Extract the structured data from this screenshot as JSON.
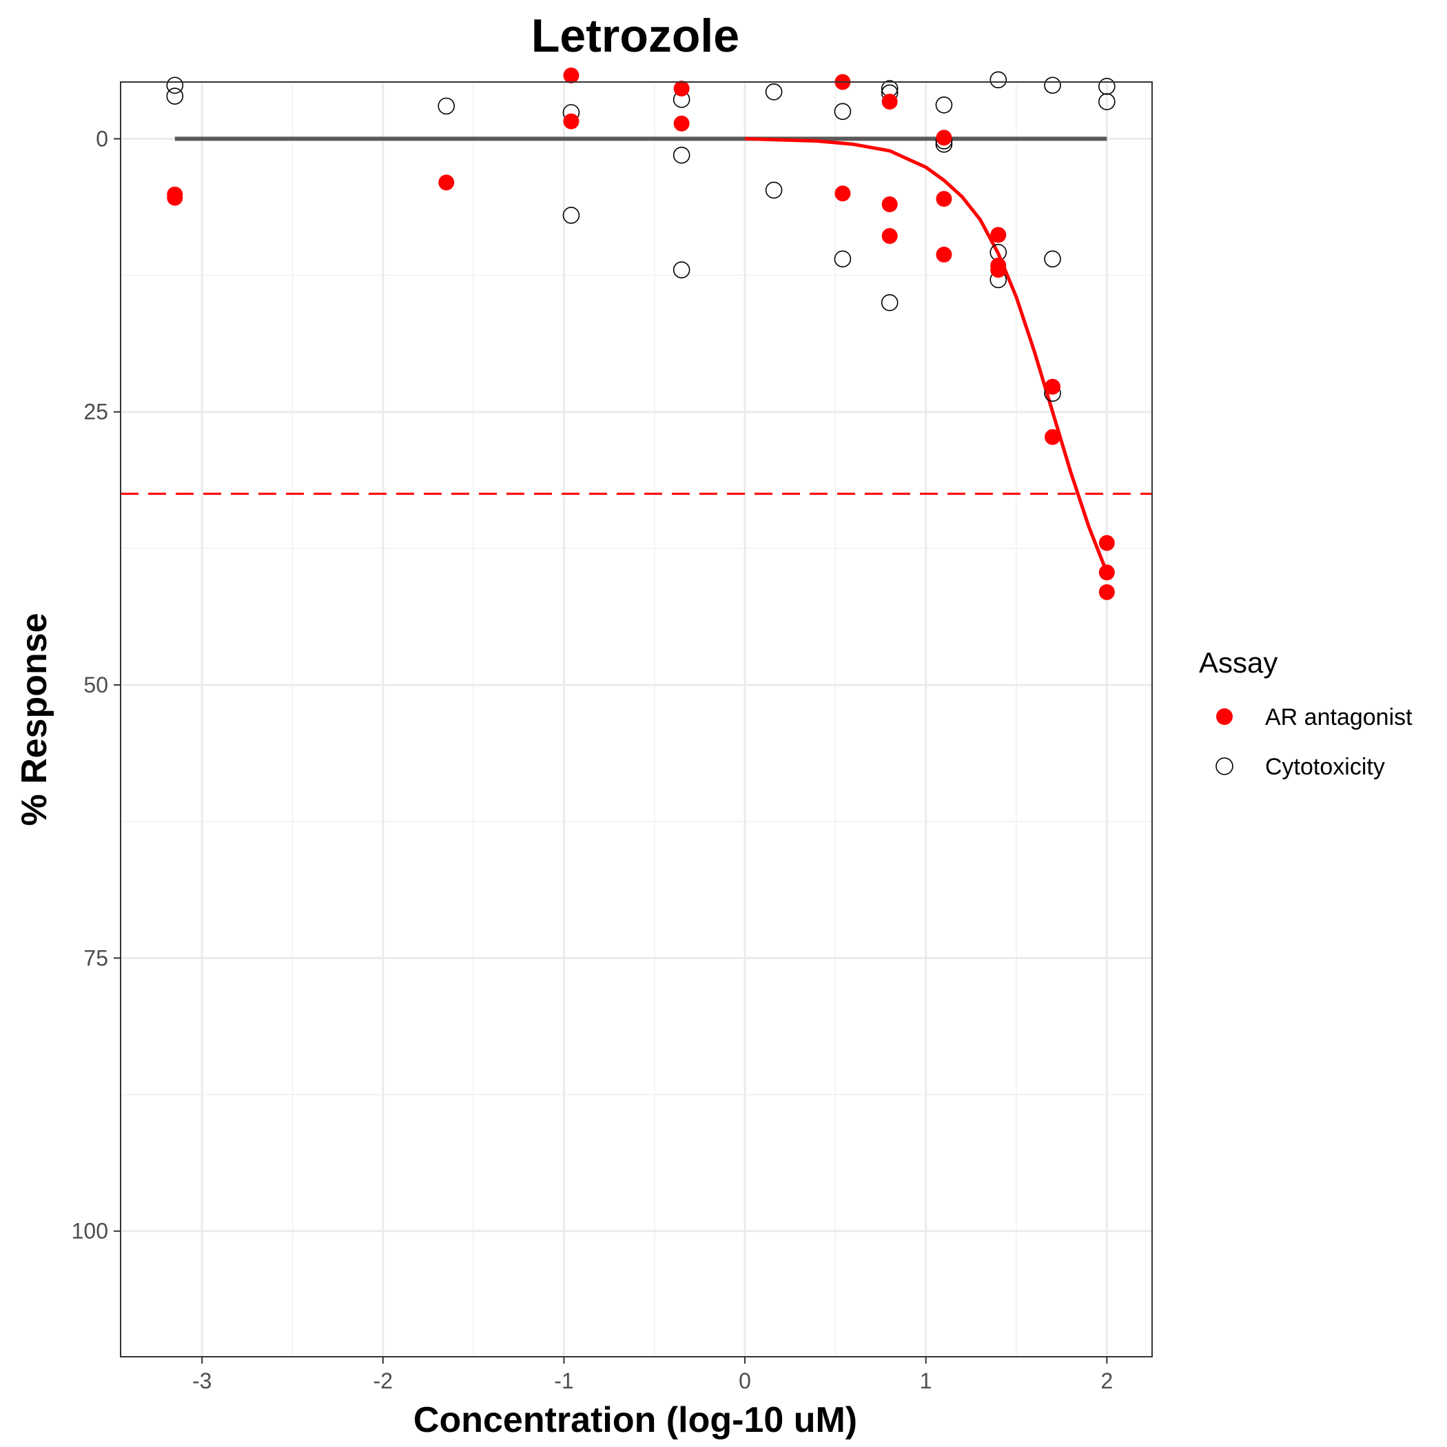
{
  "chart_data": {
    "type": "scatter",
    "title": "Letrozole",
    "xlabel": "Concentration (log-10 uM)",
    "ylabel": "% Response",
    "xlim": [
      -3.45,
      2.25
    ],
    "ylim": [
      111.5,
      -5.2
    ],
    "y_reversed": true,
    "grid": true,
    "x_ticks": [
      {
        "value": -3,
        "label": "-3"
      },
      {
        "value": -2,
        "label": "-2"
      },
      {
        "value": -1,
        "label": "-1"
      },
      {
        "value": 0,
        "label": "0"
      },
      {
        "value": 1,
        "label": "1"
      },
      {
        "value": 2,
        "label": "2"
      }
    ],
    "y_ticks": [
      {
        "value": 0,
        "label": "0"
      },
      {
        "value": 25,
        "label": "25"
      },
      {
        "value": 50,
        "label": "50"
      },
      {
        "value": 75,
        "label": "75"
      },
      {
        "value": 100,
        "label": "100"
      }
    ],
    "legend": {
      "title": "Assay",
      "position": "right",
      "entries": [
        {
          "label": "AR antagonist",
          "marker": "filled-circle",
          "color": "#ff0000"
        },
        {
          "label": "Cytotoxicity",
          "marker": "open-circle",
          "color": "#000000"
        }
      ]
    },
    "series": [
      {
        "name": "AR antagonist",
        "marker": "filled-circle",
        "color": "#ff0000",
        "points": [
          {
            "x": -3.15,
            "y": 5.1
          },
          {
            "x": -3.15,
            "y": 5.4
          },
          {
            "x": -1.65,
            "y": 4.0
          },
          {
            "x": -0.96,
            "y": -5.8
          },
          {
            "x": -0.96,
            "y": -1.6
          },
          {
            "x": -0.35,
            "y": -4.6
          },
          {
            "x": -0.35,
            "y": -1.4
          },
          {
            "x": 0.54,
            "y": -5.2
          },
          {
            "x": 0.54,
            "y": 5.0
          },
          {
            "x": 0.8,
            "y": -3.4
          },
          {
            "x": 0.8,
            "y": 6.0
          },
          {
            "x": 0.8,
            "y": 8.9
          },
          {
            "x": 1.1,
            "y": -0.1
          },
          {
            "x": 1.1,
            "y": 5.5
          },
          {
            "x": 1.1,
            "y": 10.6
          },
          {
            "x": 1.4,
            "y": 8.8
          },
          {
            "x": 1.4,
            "y": 11.6
          },
          {
            "x": 1.4,
            "y": 12.0
          },
          {
            "x": 1.7,
            "y": 22.7
          },
          {
            "x": 1.7,
            "y": 27.3
          },
          {
            "x": 2.0,
            "y": 37.0
          },
          {
            "x": 2.0,
            "y": 39.7
          },
          {
            "x": 2.0,
            "y": 41.5
          }
        ]
      },
      {
        "name": "Cytotoxicity",
        "marker": "open-circle",
        "color": "#000000",
        "points": [
          {
            "x": -3.15,
            "y": -4.9
          },
          {
            "x": -3.15,
            "y": -3.9
          },
          {
            "x": -1.65,
            "y": -3.0
          },
          {
            "x": -0.96,
            "y": -2.4
          },
          {
            "x": -0.96,
            "y": 7.0
          },
          {
            "x": -0.35,
            "y": -3.6
          },
          {
            "x": -0.35,
            "y": 1.5
          },
          {
            "x": -0.35,
            "y": 12.0
          },
          {
            "x": 0.16,
            "y": -4.3
          },
          {
            "x": 0.16,
            "y": 4.7
          },
          {
            "x": 0.54,
            "y": -2.5
          },
          {
            "x": 0.54,
            "y": 11.0
          },
          {
            "x": 0.8,
            "y": -4.6
          },
          {
            "x": 0.8,
            "y": -4.2
          },
          {
            "x": 0.8,
            "y": 15.0
          },
          {
            "x": 1.1,
            "y": -3.1
          },
          {
            "x": 1.1,
            "y": 0.2
          },
          {
            "x": 1.1,
            "y": 0.5
          },
          {
            "x": 1.4,
            "y": -5.4
          },
          {
            "x": 1.4,
            "y": 10.4
          },
          {
            "x": 1.4,
            "y": 12.9
          },
          {
            "x": 1.7,
            "y": -4.9
          },
          {
            "x": 1.7,
            "y": 11.0
          },
          {
            "x": 1.7,
            "y": 23.3
          },
          {
            "x": 2.0,
            "y": -4.8
          },
          {
            "x": 2.0,
            "y": -3.4
          }
        ]
      }
    ],
    "fit_curve": {
      "series": "AR antagonist",
      "color": "#ff0000",
      "points": [
        {
          "x": 0.0,
          "y": 0.0
        },
        {
          "x": 0.2,
          "y": 0.1
        },
        {
          "x": 0.4,
          "y": 0.2
        },
        {
          "x": 0.6,
          "y": 0.5
        },
        {
          "x": 0.8,
          "y": 1.1
        },
        {
          "x": 1.0,
          "y": 2.6
        },
        {
          "x": 1.1,
          "y": 3.8
        },
        {
          "x": 1.2,
          "y": 5.3
        },
        {
          "x": 1.3,
          "y": 7.4
        },
        {
          "x": 1.4,
          "y": 10.5
        },
        {
          "x": 1.5,
          "y": 14.5
        },
        {
          "x": 1.6,
          "y": 19.5
        },
        {
          "x": 1.7,
          "y": 25.0
        },
        {
          "x": 1.8,
          "y": 30.5
        },
        {
          "x": 1.9,
          "y": 35.5
        },
        {
          "x": 2.0,
          "y": 39.7
        }
      ]
    },
    "reference_lines": [
      {
        "kind": "baseline",
        "color": "#595959",
        "style": "solid",
        "y": 0,
        "x_from": -3.15,
        "x_to": 2.0
      },
      {
        "kind": "threshold",
        "color": "#ff0000",
        "style": "dashed",
        "y": 32.5
      }
    ]
  }
}
